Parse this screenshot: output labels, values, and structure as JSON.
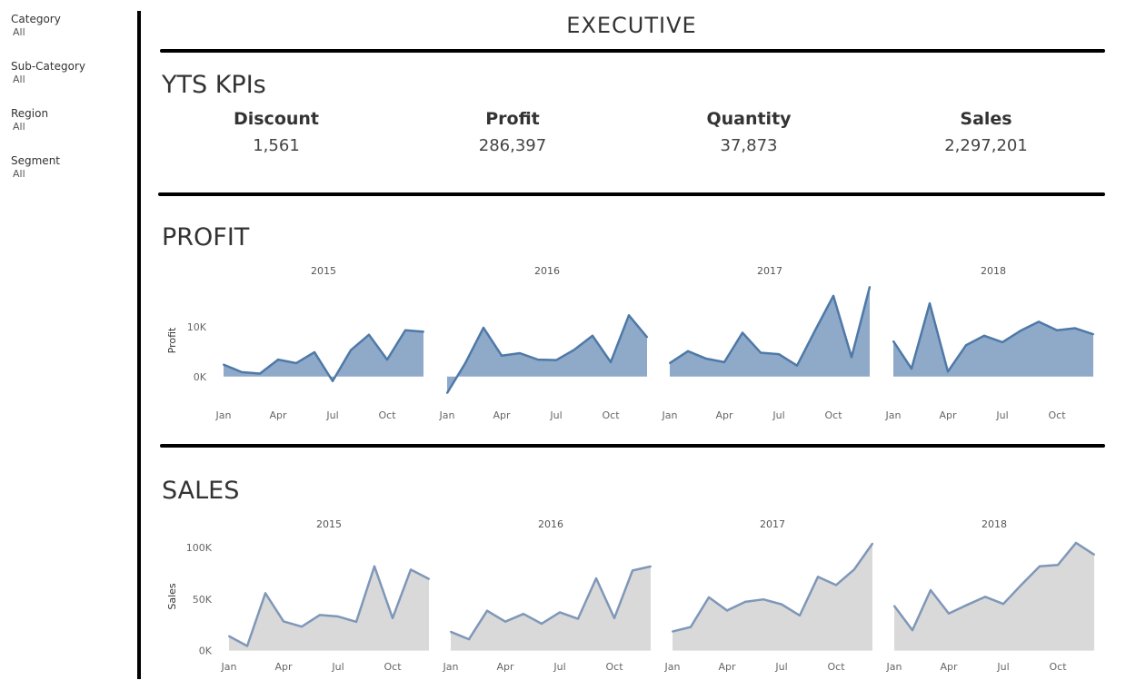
{
  "filters": [
    {
      "label": "Category",
      "value": "All"
    },
    {
      "label": "Sub-Category",
      "value": "All"
    },
    {
      "label": "Region",
      "value": "All"
    },
    {
      "label": "Segment",
      "value": "All"
    }
  ],
  "title": "EXECUTIVE",
  "kpi_section": {
    "title": "YTS KPIs",
    "items": [
      {
        "name": "Discount",
        "value": "1,561"
      },
      {
        "name": "Profit",
        "value": "286,397"
      },
      {
        "name": "Quantity",
        "value": "37,873"
      },
      {
        "name": "Sales",
        "value": "2,297,201"
      }
    ]
  },
  "colors": {
    "profit_line": "#4e79a7",
    "profit_fill": "#8fa9c9",
    "sales_line": "#7f97b8",
    "sales_fill": "#d9d9d9",
    "rule": "#000000"
  },
  "chart_data": [
    {
      "type": "area",
      "title": "PROFIT",
      "ylabel": "Profit",
      "ylim": [
        -3500,
        18000
      ],
      "yticks": [
        "0K",
        "10K"
      ],
      "x": [
        "Jan",
        "Feb",
        "Mar",
        "Apr",
        "May",
        "Jun",
        "Jul",
        "Aug",
        "Sep",
        "Oct",
        "Nov",
        "Dec"
      ],
      "xtick_labels": [
        "Jan",
        "Apr",
        "Jul",
        "Oct"
      ],
      "panels": [
        "2015",
        "2016",
        "2017",
        "2018"
      ],
      "series": [
        {
          "values": [
            2400,
            900,
            600,
            3400,
            2700,
            4900,
            -900,
            5300,
            8400,
            3400,
            9300,
            9000
          ]
        },
        {
          "values": [
            -3300,
            2700,
            9800,
            4200,
            4700,
            3400,
            3300,
            5400,
            8200,
            2900,
            12300,
            7900
          ]
        },
        {
          "values": [
            2700,
            5100,
            3600,
            2900,
            8800,
            4800,
            4500,
            2200,
            9300,
            16200,
            3900,
            18000
          ]
        },
        {
          "values": [
            7100,
            1600,
            14700,
            1000,
            6300,
            8200,
            6900,
            9200,
            11000,
            9300,
            9700,
            8500
          ]
        }
      ]
    },
    {
      "type": "area",
      "title": "SALES",
      "ylabel": "Sales",
      "ylim": [
        -3000,
        108000
      ],
      "yticks": [
        "0K",
        "50K",
        "100K"
      ],
      "x": [
        "Jan",
        "Feb",
        "Mar",
        "Apr",
        "May",
        "Jun",
        "Jul",
        "Aug",
        "Sep",
        "Oct",
        "Nov",
        "Dec"
      ],
      "xtick_labels": [
        "Jan",
        "Apr",
        "Jul",
        "Oct"
      ],
      "panels": [
        "2015",
        "2016",
        "2017",
        "2018"
      ],
      "series": [
        {
          "values": [
            14000,
            4500,
            55700,
            28300,
            23300,
            34600,
            33100,
            27900,
            81800,
            31500,
            78600,
            69500
          ]
        },
        {
          "values": [
            18200,
            11000,
            38700,
            28100,
            35600,
            26100,
            37100,
            30900,
            70100,
            31500,
            77700,
            81700
          ]
        },
        {
          "values": [
            18500,
            22900,
            51700,
            38900,
            47300,
            49700,
            44900,
            34100,
            71600,
            63600,
            78800,
            103800
          ]
        },
        {
          "values": [
            43400,
            19800,
            58700,
            36000,
            44300,
            52200,
            45300,
            64000,
            81800,
            83100,
            104500,
            93100
          ]
        }
      ]
    }
  ]
}
